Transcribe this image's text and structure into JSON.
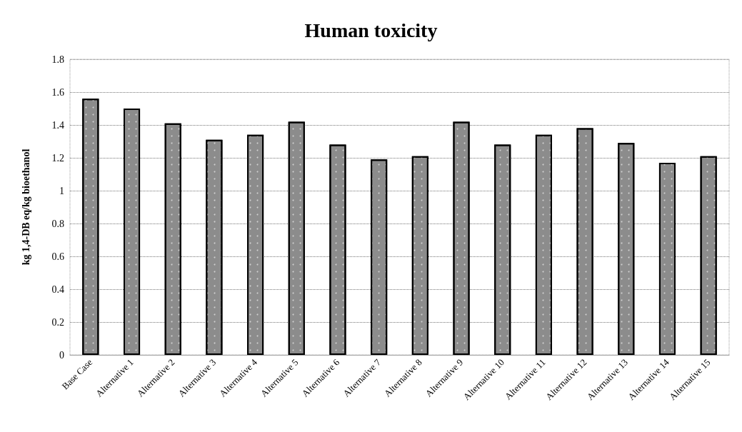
{
  "chart_data": {
    "type": "bar",
    "title": "Human toxicity",
    "ylabel": "kg 1,4-DB eq/kg bioethanol",
    "categories": [
      "Base Case",
      "Alternative 1",
      "Alternative 2",
      "Alternative 3",
      "Alternative 4",
      "Alternative 5",
      "Alternative 6",
      "Alternative 7",
      "Alternative 8",
      "Alternative 9",
      "Alternative 10",
      "Alternative 11",
      "Alternative 12",
      "Alternative 13",
      "Alternative 14",
      "Alternative 15"
    ],
    "values": [
      1.56,
      1.5,
      1.41,
      1.31,
      1.34,
      1.42,
      1.28,
      1.19,
      1.21,
      1.42,
      1.28,
      1.34,
      1.38,
      1.29,
      1.17,
      1.21
    ],
    "color": "#8c8c8c",
    "ylim": [
      0,
      1.8
    ],
    "yticks": [
      0,
      0.2,
      0.4,
      0.6,
      0.8,
      1,
      1.2,
      1.4,
      1.6,
      1.8
    ],
    "grid": "y"
  }
}
